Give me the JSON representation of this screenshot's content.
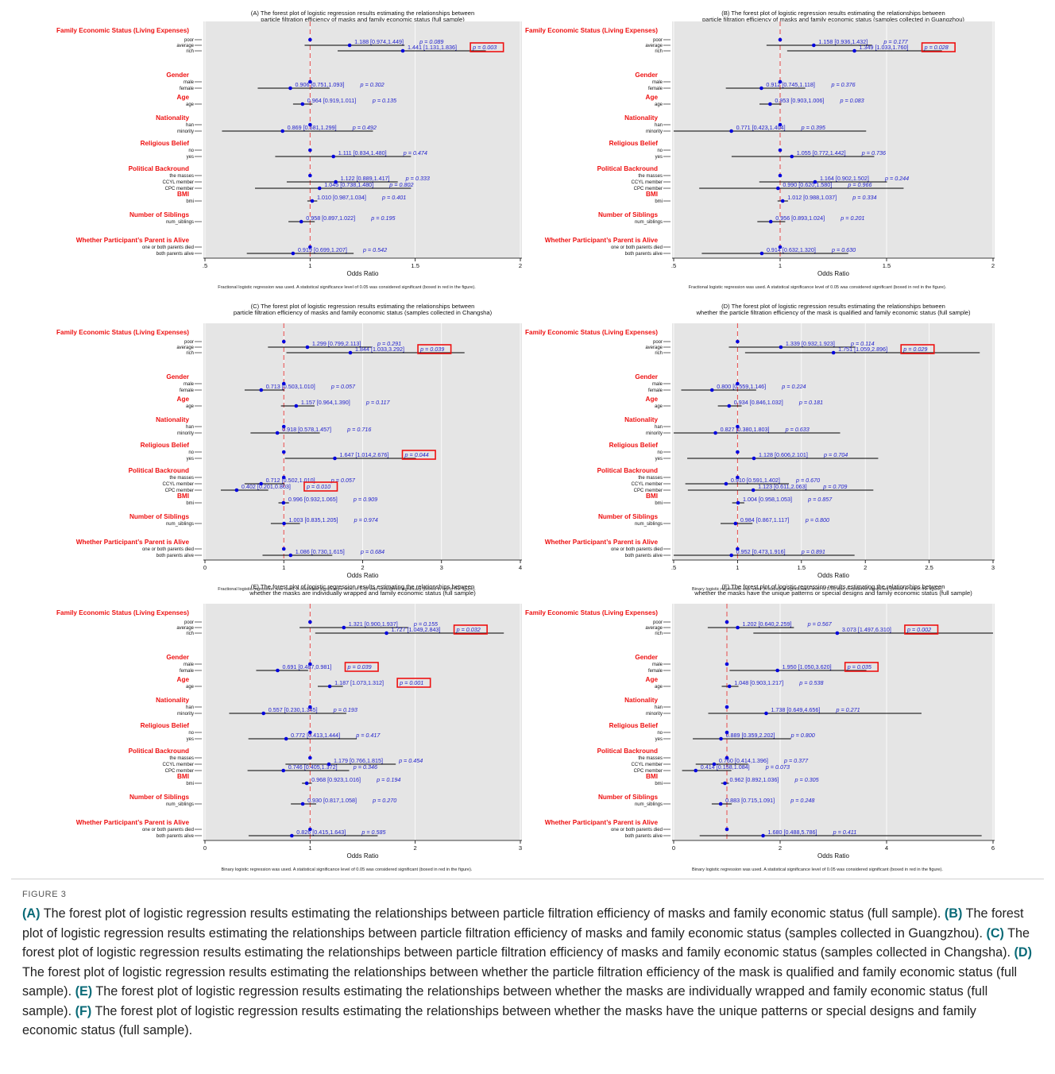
{
  "figure_label": "FIGURE 3",
  "caption": [
    {
      "tag": "(A)",
      "text": " The forest plot of logistic regression results estimating the relationships between particle filtration efficiency of masks and family economic status (full sample). "
    },
    {
      "tag": "(B)",
      "text": " The forest plot of logistic regression results estimating the relationships between particle filtration efficiency of masks and family economic status (samples collected in Guangzhou). "
    },
    {
      "tag": "(C)",
      "text": " The forest plot of logistic regression results estimating the relationships between particle filtration efficiency of masks and family economic status (samples collected in Changsha). "
    },
    {
      "tag": "(D)",
      "text": " The forest plot of logistic regression results estimating the relationships between whether the particle filtration efficiency of the mask is qualified and family economic status (full sample). "
    },
    {
      "tag": "(E)",
      "text": " The forest plot of logistic regression results estimating the relationships between whether the masks are individually wrapped and family economic status (full sample). "
    },
    {
      "tag": "(F)",
      "text": " The forest plot of logistic regression results estimating the relationships between whether the masks have the unique patterns or special designs and family economic status (full sample)."
    }
  ],
  "groups": [
    {
      "title": "Family Economic Status (Living Expenses)",
      "rows": [
        "poor",
        "average",
        "rich"
      ]
    },
    {
      "title": "Gender",
      "rows": [
        "male",
        "female"
      ]
    },
    {
      "title": "Age",
      "rows": [
        "age"
      ]
    },
    {
      "title": "Nationality",
      "rows": [
        "han",
        "minority"
      ]
    },
    {
      "title": "Religious Belief",
      "rows": [
        "no",
        "yes"
      ]
    },
    {
      "title": "Political Backround",
      "rows": [
        "the masses",
        "CCYL member",
        "CPC member"
      ]
    },
    {
      "title": "BMI",
      "rows": [
        "bmi"
      ]
    },
    {
      "title": "Number of Siblings",
      "rows": [
        "num_siblings"
      ]
    },
    {
      "title": "Whether Participant’s Parent is Alive",
      "rows": [
        "one or both parents died",
        "both parents alive"
      ]
    }
  ],
  "colors": {
    "panel_bg": "#e5e5e5",
    "point": "#0000dd",
    "label_text": "#2222cc",
    "group_title": "#ee1111",
    "box": "#ee1111",
    "ref_line": "#e84a4a"
  },
  "chart_data": [
    {
      "id": "A",
      "type": "forest",
      "title_lines": [
        "(A) The forest plot of logistic regression results estimating the relationships between",
        "particle filtration efficiency of masks and family economic status (full sample)"
      ],
      "xlabel": "Odds Ratio",
      "xlim": [
        0.5,
        2.0
      ],
      "ticks": [
        0.5,
        1,
        1.5,
        2
      ],
      "tick_labels": [
        ".5",
        "1",
        "1.5",
        "2"
      ],
      "note": "Fractional logistic regression was used. A statistical significance level of 0.05 was considered significant (boxed in red in the figure).",
      "ref": 1,
      "rows": [
        {
          "or": 1
        },
        {
          "or": 1.188,
          "lo": 0.974,
          "hi": 1.449,
          "label": "1.188 [0.974,1.449]",
          "p": "p = 0.089"
        },
        {
          "or": 1.441,
          "lo": 1.131,
          "hi": 1.836,
          "label": "1.441 [1.131,1.836]",
          "p": "p = 0.003",
          "sig": true
        },
        {
          "or": 1
        },
        {
          "or": 0.906,
          "lo": 0.751,
          "hi": 1.093,
          "label": "0.906 [0.751,1.093]",
          "p": "p = 0.302"
        },
        {
          "or": 0.964,
          "lo": 0.919,
          "hi": 1.011,
          "label": "0.964 [0.919,1.011]",
          "p": "p = 0.135"
        },
        {
          "or": 1
        },
        {
          "or": 0.869,
          "lo": 0.581,
          "hi": 1.299,
          "label": "0.869 [0.581,1.299]",
          "p": "p = 0.492"
        },
        {
          "or": 1
        },
        {
          "or": 1.111,
          "lo": 0.834,
          "hi": 1.48,
          "label": "1.111 [0.834,1.480]",
          "p": "p = 0.474"
        },
        {
          "or": 1
        },
        {
          "or": 1.122,
          "lo": 0.889,
          "hi": 1.417,
          "label": "1.122 [0.889,1.417]",
          "p": "p = 0.333"
        },
        {
          "or": 1.045,
          "lo": 0.738,
          "hi": 1.48,
          "label": "1.045 [0.738,1.480]",
          "p": "p = 0.802"
        },
        {
          "or": 1.01,
          "lo": 0.987,
          "hi": 1.034,
          "label": "1.010 [0.987,1.034]",
          "p": "p = 0.401"
        },
        {
          "or": 0.958,
          "lo": 0.897,
          "hi": 1.022,
          "label": "0.958 [0.897,1.022]",
          "p": "p = 0.195"
        },
        {
          "or": 1
        },
        {
          "or": 0.919,
          "lo": 0.699,
          "hi": 1.207,
          "label": "0.919 [0.699,1.207]",
          "p": "p = 0.542"
        }
      ]
    },
    {
      "id": "B",
      "type": "forest",
      "title_lines": [
        "(B) The forest plot of logistic regression results estimating the relationships between",
        "particle filtration efficiency of masks and family economic status (samples collected in Guangzhou)"
      ],
      "xlabel": "Odds Ratio",
      "xlim": [
        0.5,
        2.0
      ],
      "ticks": [
        0.5,
        1,
        1.5,
        2
      ],
      "tick_labels": [
        ".5",
        "1",
        "1.5",
        "2"
      ],
      "note": "Fractional logistic regression was used. A statistical significance level of 0.05 was considered significant (boxed in red in the figure).",
      "ref": 1,
      "rows": [
        {
          "or": 1
        },
        {
          "or": 1.158,
          "lo": 0.936,
          "hi": 1.432,
          "label": "1.158 [0.936,1.432]",
          "p": "p = 0.177"
        },
        {
          "or": 1.349,
          "lo": 1.033,
          "hi": 1.76,
          "label": "1.349 [1.033,1.760]",
          "p": "p = 0.028",
          "sig": true
        },
        {
          "or": 1
        },
        {
          "or": 0.912,
          "lo": 0.745,
          "hi": 1.118,
          "label": "0.912 [0.745,1.118]",
          "p": "p = 0.376"
        },
        {
          "or": 0.953,
          "lo": 0.903,
          "hi": 1.006,
          "label": "0.953 [0.903,1.006]",
          "p": "p = 0.083"
        },
        {
          "or": 1
        },
        {
          "or": 0.771,
          "lo": 0.423,
          "hi": 1.404,
          "label": "0.771 [0.423,1.404]",
          "p": "p = 0.395"
        },
        {
          "or": 1
        },
        {
          "or": 1.055,
          "lo": 0.772,
          "hi": 1.442,
          "label": "1.055 [0.772,1.442]",
          "p": "p = 0.736"
        },
        {
          "or": 1
        },
        {
          "or": 1.164,
          "lo": 0.902,
          "hi": 1.502,
          "label": "1.164 [0.902,1.502]",
          "p": "p = 0.244"
        },
        {
          "or": 0.99,
          "lo": 0.62,
          "hi": 1.58,
          "label": "0.990 [0.620,1.580]",
          "p": "p = 0.966"
        },
        {
          "or": 1.012,
          "lo": 0.988,
          "hi": 1.037,
          "label": "1.012 [0.988,1.037]",
          "p": "p = 0.334"
        },
        {
          "or": 0.956,
          "lo": 0.893,
          "hi": 1.024,
          "label": "0.956 [0.893,1.024]",
          "p": "p = 0.201"
        },
        {
          "or": 1
        },
        {
          "or": 0.914,
          "lo": 0.632,
          "hi": 1.32,
          "label": "0.914 [0.632,1.320]",
          "p": "p = 0.630"
        }
      ]
    },
    {
      "id": "C",
      "type": "forest",
      "title_lines": [
        "(C) The forest plot of logistic regression results estimating the relationships between",
        "particle filtration efficiency of masks and family economic status (samples collected in Changsha)"
      ],
      "xlabel": "Odds Ratio",
      "xlim": [
        0,
        4
      ],
      "ticks": [
        0,
        1,
        2,
        3,
        4
      ],
      "tick_labels": [
        "0",
        "1",
        "2",
        "3",
        "4"
      ],
      "note": "Fractional logistic regression was used. A statistical significance level of 0.05 was considered significant (boxed in red in the figure).",
      "ref": 1,
      "rows": [
        {
          "or": 1
        },
        {
          "or": 1.299,
          "lo": 0.799,
          "hi": 2.113,
          "label": "1.299 [0.799,2.113]",
          "p": "p = 0.291"
        },
        {
          "or": 1.844,
          "lo": 1.033,
          "hi": 3.292,
          "label": "1.844 [1.033,3.292]",
          "p": "p = 0.039",
          "sig": true
        },
        {
          "or": 1
        },
        {
          "or": 0.713,
          "lo": 0.503,
          "hi": 1.01,
          "label": "0.713 [0.503,1.010]",
          "p": "p = 0.057"
        },
        {
          "or": 1.157,
          "lo": 0.964,
          "hi": 1.39,
          "label": "1.157 [0.964,1.390]",
          "p": "p = 0.117"
        },
        {
          "or": 1
        },
        {
          "or": 0.918,
          "lo": 0.578,
          "hi": 1.457,
          "label": "0.918 [0.578,1.457]",
          "p": "p = 0.716"
        },
        {
          "or": 1
        },
        {
          "or": 1.647,
          "lo": 1.014,
          "hi": 2.676,
          "label": "1.647 [1.014,2.676]",
          "p": "p = 0.044",
          "sig": true
        },
        {
          "or": 1
        },
        {
          "or": 0.712,
          "lo": 0.502,
          "hi": 1.01,
          "label": "0.712 [0.502,1.010]",
          "p": "p = 0.057"
        },
        {
          "or": 0.402,
          "lo": 0.201,
          "hi": 0.803,
          "label": "0.402 [0.201,0.803]",
          "p": "p = 0.010",
          "sig": true
        },
        {
          "or": 0.996,
          "lo": 0.932,
          "hi": 1.065,
          "label": "0.996 [0.932,1.065]",
          "p": "p = 0.909"
        },
        {
          "or": 1.003,
          "lo": 0.835,
          "hi": 1.205,
          "label": "1.003 [0.835,1.205]",
          "p": "p = 0.974"
        },
        {
          "or": 1
        },
        {
          "or": 1.086,
          "lo": 0.73,
          "hi": 1.615,
          "label": "1.086 [0.730,1.615]",
          "p": "p = 0.684"
        }
      ]
    },
    {
      "id": "D",
      "type": "forest",
      "title_lines": [
        "(D) The forest plot of logistic regression results estimating the relationships between",
        "whether the particle filtration efficiency of the mask is qualified and family economic status (full sample)"
      ],
      "xlabel": "Odds Ratio",
      "xlim": [
        0.5,
        3.0
      ],
      "ticks": [
        0.5,
        1,
        1.5,
        2,
        2.5,
        3
      ],
      "tick_labels": [
        ".5",
        "1",
        "1.5",
        "2",
        "2.5",
        "3"
      ],
      "note": "Binary logistic regression was used. A statistical significance level of 0.05 was considered significant (boxed in red in the figure).",
      "ref": 1,
      "rows": [
        {
          "or": 1
        },
        {
          "or": 1.339,
          "lo": 0.932,
          "hi": 1.923,
          "label": "1.339 [0.932,1.923]",
          "p": "p = 0.114"
        },
        {
          "or": 1.751,
          "lo": 1.059,
          "hi": 2.896,
          "label": "1.751 [1.059,2.896]",
          "p": "p = 0.029",
          "sig": true
        },
        {
          "or": 1
        },
        {
          "or": 0.8,
          "lo": 0.559,
          "hi": 1.146,
          "label": "0.800 [0.559,1.146]",
          "p": "p = 0.224"
        },
        {
          "or": 0.934,
          "lo": 0.846,
          "hi": 1.032,
          "label": "0.934 [0.846,1.032]",
          "p": "p = 0.181"
        },
        {
          "or": 1
        },
        {
          "or": 0.827,
          "lo": 0.38,
          "hi": 1.803,
          "label": "0.827 [0.380,1.803]",
          "p": "p = 0.633"
        },
        {
          "or": 1
        },
        {
          "or": 1.128,
          "lo": 0.606,
          "hi": 2.101,
          "label": "1.128 [0.606,2.101]",
          "p": "p = 0.704"
        },
        {
          "or": 1
        },
        {
          "or": 0.91,
          "lo": 0.591,
          "hi": 1.402,
          "label": "0.910 [0.591,1.402]",
          "p": "p = 0.670"
        },
        {
          "or": 1.123,
          "lo": 0.611,
          "hi": 2.063,
          "label": "1.123 [0.611,2.063]",
          "p": "p = 0.709"
        },
        {
          "or": 1.004,
          "lo": 0.958,
          "hi": 1.053,
          "label": "1.004 [0.958,1.053]",
          "p": "p = 0.857"
        },
        {
          "or": 0.984,
          "lo": 0.867,
          "hi": 1.117,
          "label": "0.984 [0.867,1.117]",
          "p": "p = 0.800"
        },
        {
          "or": 1
        },
        {
          "or": 0.952,
          "lo": 0.473,
          "hi": 1.916,
          "label": "0.952 [0.473,1.916]",
          "p": "p = 0.891"
        }
      ]
    },
    {
      "id": "E",
      "type": "forest",
      "title_lines": [
        "(E) The forest plot of logistic regression results estimating the relationships between",
        "whether the masks are individually wrapped and family economic status (full sample)"
      ],
      "xlabel": "Odds Ratio",
      "xlim": [
        0,
        3
      ],
      "ticks": [
        0,
        1,
        2,
        3
      ],
      "tick_labels": [
        "0",
        "1",
        "2",
        "3"
      ],
      "note": "Binary logistic regression was used. A statistical significance level of 0.05 was considered significant (boxed in red in the figure).",
      "ref": 1,
      "rows": [
        {
          "or": 1
        },
        {
          "or": 1.321,
          "lo": 0.9,
          "hi": 1.937,
          "label": "1.321 [0.900,1.937]",
          "p": "p = 0.155"
        },
        {
          "or": 1.727,
          "lo": 1.049,
          "hi": 2.843,
          "label": "1.727 [1.049,2.843]",
          "p": "p = 0.032",
          "sig": true
        },
        {
          "or": 1
        },
        {
          "or": 0.691,
          "lo": 0.487,
          "hi": 0.981,
          "label": "0.691 [0.487,0.981]",
          "p": "p = 0.039",
          "sig": true
        },
        {
          "or": 1.187,
          "lo": 1.073,
          "hi": 1.312,
          "label": "1.187 [1.073,1.312]",
          "p": "p = 0.001",
          "sig": true
        },
        {
          "or": 1
        },
        {
          "or": 0.557,
          "lo": 0.23,
          "hi": 1.345,
          "label": "0.557 [0.230,1.345]",
          "p": "p = 0.193"
        },
        {
          "or": 1
        },
        {
          "or": 0.772,
          "lo": 0.413,
          "hi": 1.444,
          "label": "0.772 [0.413,1.444]",
          "p": "p = 0.417"
        },
        {
          "or": 1
        },
        {
          "or": 1.179,
          "lo": 0.766,
          "hi": 1.815,
          "label": "1.179 [0.766,1.815]",
          "p": "p = 0.454"
        },
        {
          "or": 0.746,
          "lo": 0.405,
          "hi": 1.372,
          "label": "0.746 [0.405,1.372]",
          "p": "p = 0.346"
        },
        {
          "or": 0.968,
          "lo": 0.923,
          "hi": 1.016,
          "label": "0.968 [0.923,1.016]",
          "p": "p = 0.194"
        },
        {
          "or": 0.93,
          "lo": 0.817,
          "hi": 1.058,
          "label": "0.930 [0.817,1.058]",
          "p": "p = 0.270"
        },
        {
          "or": 1
        },
        {
          "or": 0.826,
          "lo": 0.415,
          "hi": 1.643,
          "label": "0.826 [0.415,1.643]",
          "p": "p = 0.585"
        }
      ]
    },
    {
      "id": "F",
      "type": "forest",
      "title_lines": [
        "(F) The forest plot of logistic regression results estimating the relationships between",
        "whether the masks have the unique patterns or special designs and family economic status (full sample)"
      ],
      "xlabel": "Odds Ratio",
      "xlim": [
        0,
        6
      ],
      "ticks": [
        0,
        2,
        4,
        6
      ],
      "tick_labels": [
        "0",
        "2",
        "4",
        "6"
      ],
      "note": "Binary logistic regression was used. A statistical significance level of 0.05 was considered significant (boxed in red in the figure).",
      "ref": 1,
      "rows": [
        {
          "or": 1
        },
        {
          "or": 1.202,
          "lo": 0.64,
          "hi": 2.259,
          "label": "1.202 [0.640,2.259]",
          "p": "p = 0.567"
        },
        {
          "or": 3.073,
          "lo": 1.497,
          "hi": 6.31,
          "label": "3.073 [1.497,6.310]",
          "p": "p = 0.002",
          "sig": true
        },
        {
          "or": 1
        },
        {
          "or": 1.95,
          "lo": 1.05,
          "hi": 3.62,
          "label": "1.950 [1.050,3.620]",
          "p": "p = 0.035",
          "sig": true
        },
        {
          "or": 1.048,
          "lo": 0.903,
          "hi": 1.217,
          "label": "1.048 [0.903,1.217]",
          "p": "p = 0.538"
        },
        {
          "or": 1
        },
        {
          "or": 1.738,
          "lo": 0.649,
          "hi": 4.656,
          "label": "1.738 [0.649,4.656]",
          "p": "p = 0.271"
        },
        {
          "or": 1
        },
        {
          "or": 0.889,
          "lo": 0.359,
          "hi": 2.202,
          "label": "0.889 [0.359,2.202]",
          "p": "p = 0.800"
        },
        {
          "or": 1
        },
        {
          "or": 0.76,
          "lo": 0.414,
          "hi": 1.396,
          "label": "0.760 [0.414,1.396]",
          "p": "p = 0.377"
        },
        {
          "or": 0.414,
          "lo": 0.158,
          "hi": 1.084,
          "label": "0.414 [0.158,1.084]",
          "p": "p = 0.073"
        },
        {
          "or": 0.962,
          "lo": 0.892,
          "hi": 1.036,
          "label": "0.962 [0.892,1.036]",
          "p": "p = 0.305"
        },
        {
          "or": 0.883,
          "lo": 0.715,
          "hi": 1.091,
          "label": "0.883 [0.715,1.091]",
          "p": "p = 0.248"
        },
        {
          "or": 1
        },
        {
          "or": 1.68,
          "lo": 0.488,
          "hi": 5.786,
          "label": "1.680 [0.488,5.786]",
          "p": "p = 0.411"
        }
      ]
    }
  ]
}
